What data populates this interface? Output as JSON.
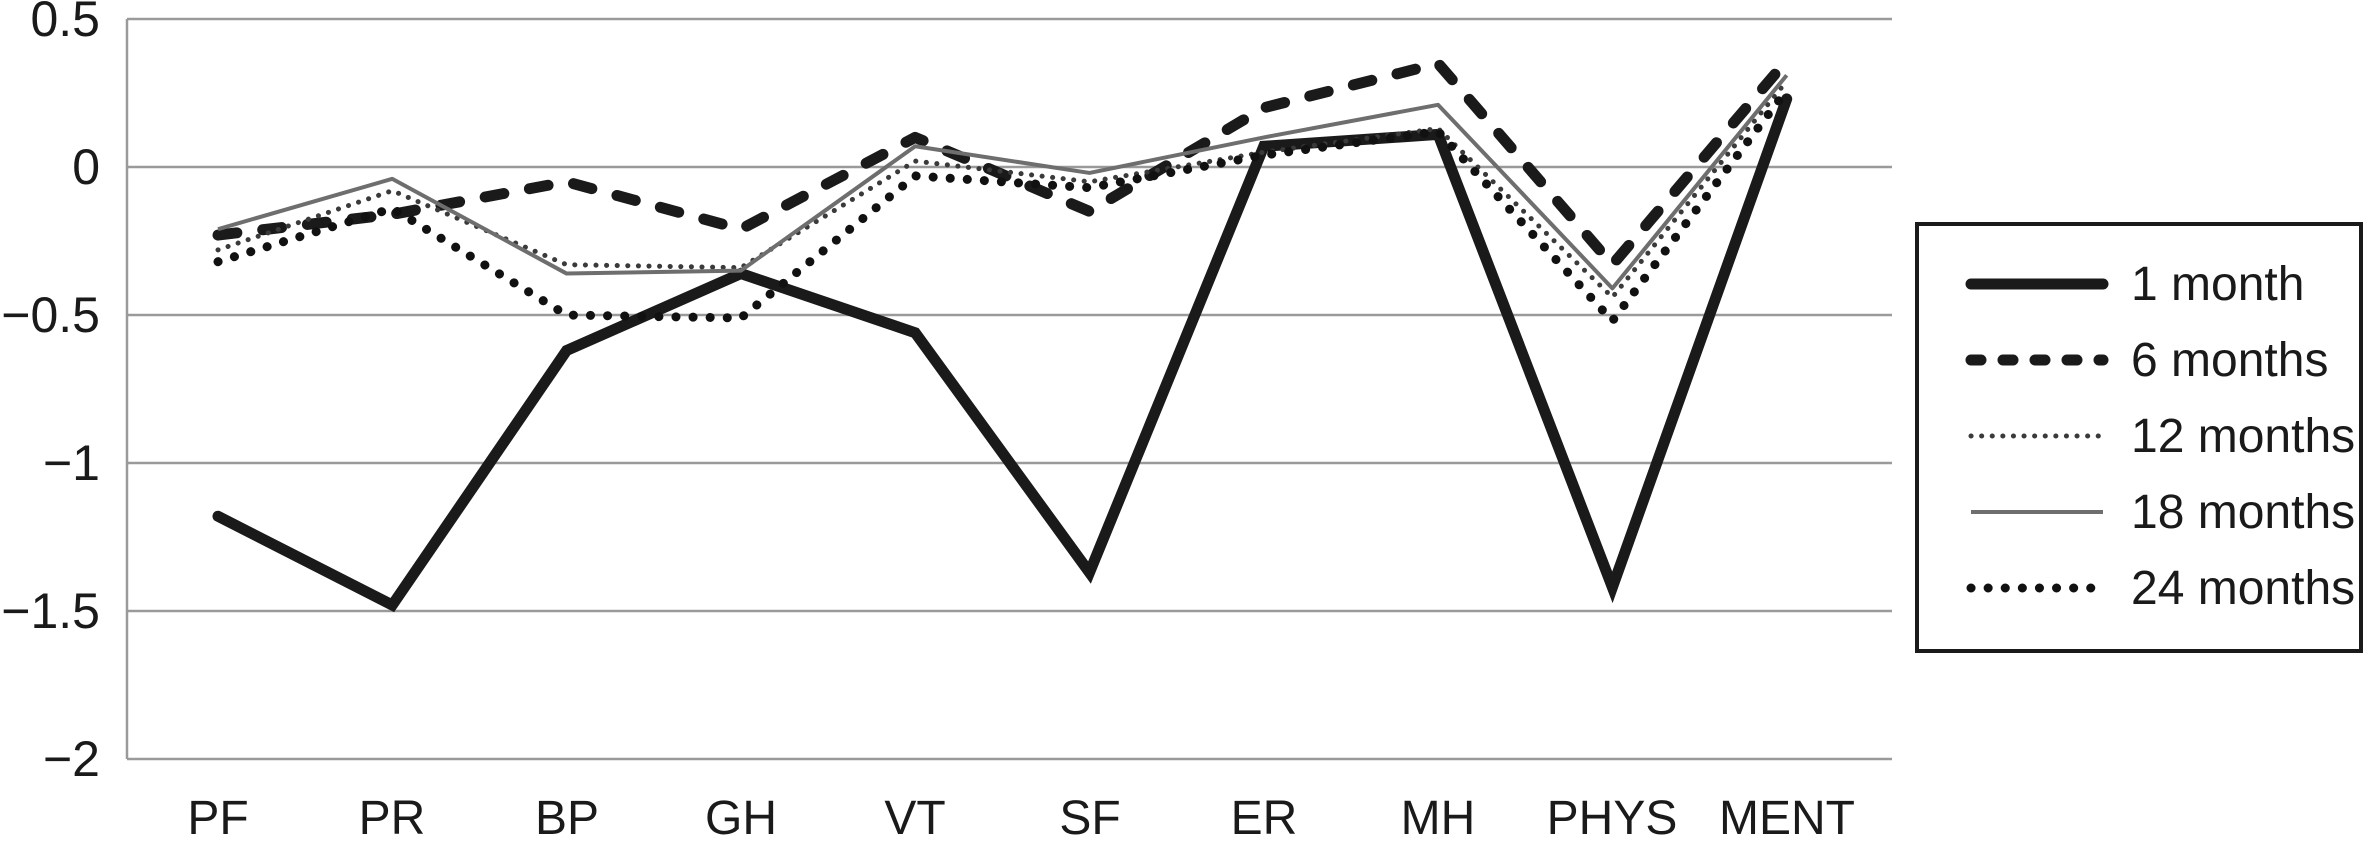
{
  "chart_data": {
    "type": "line",
    "title": "",
    "categories": [
      "PF",
      "PR",
      "BP",
      "GH",
      "VT",
      "SF",
      "ER",
      "MH",
      "PHYS",
      "MENT"
    ],
    "series": [
      {
        "name": "1 month",
        "style": "solid-thick",
        "color": "#1a1a1a",
        "values": [
          -1.18,
          -1.48,
          -0.62,
          -0.36,
          -0.56,
          -1.37,
          0.07,
          0.11,
          -1.42,
          0.23
        ]
      },
      {
        "name": "6 months",
        "style": "dashed",
        "color": "#1a1a1a",
        "values": [
          -0.23,
          -0.16,
          -0.05,
          -0.21,
          0.1,
          -0.15,
          0.2,
          0.35,
          -0.33,
          0.36
        ]
      },
      {
        "name": "12 months",
        "style": "dotted-fine",
        "color": "#3a3a3a",
        "values": [
          -0.28,
          -0.08,
          -0.33,
          -0.34,
          0.02,
          -0.05,
          0.05,
          0.13,
          -0.44,
          0.29
        ]
      },
      {
        "name": "18 months",
        "style": "solid-thin",
        "color": "#6e6e6e",
        "values": [
          -0.21,
          -0.04,
          -0.36,
          -0.35,
          0.07,
          -0.02,
          0.1,
          0.21,
          -0.41,
          0.31
        ]
      },
      {
        "name": "24 months",
        "style": "dotted-bold",
        "color": "#111111",
        "values": [
          -0.32,
          -0.14,
          -0.5,
          -0.51,
          -0.03,
          -0.07,
          0.04,
          0.12,
          -0.52,
          0.26
        ]
      }
    ],
    "ylim": [
      -2,
      0.5
    ],
    "ytick_values": [
      0.5,
      0,
      -0.5,
      -1,
      -1.5,
      -2
    ],
    "ytick_labels": [
      "0.5",
      "0",
      "−0.5",
      "−1",
      "−1.5",
      "−2"
    ],
    "grid": true,
    "legend_position": "right"
  },
  "colors": {
    "background": "#ffffff",
    "grid": "#9a9a9a",
    "legend_border": "#1a1a1a"
  }
}
